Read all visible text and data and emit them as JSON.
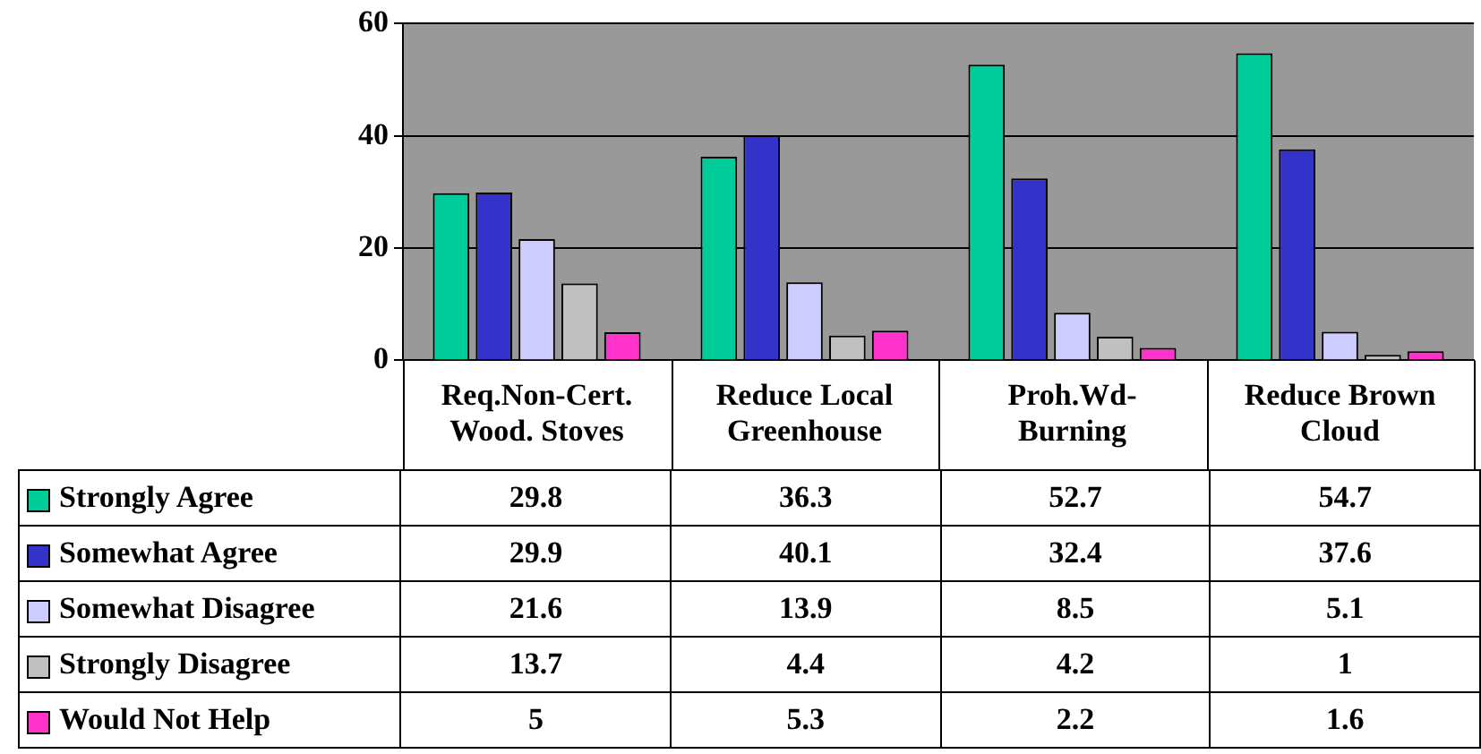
{
  "chart_data": {
    "type": "bar",
    "categories": [
      "Req.Non-Cert.\nWood. Stoves",
      "Reduce Local\nGreenhouse",
      "Proh.Wd-\nBurning",
      "Reduce Brown\nCloud"
    ],
    "series": [
      {
        "name": "Strongly Agree",
        "color": "#00cc99",
        "values": [
          29.8,
          36.3,
          52.7,
          54.7
        ]
      },
      {
        "name": "Somewhat Agree",
        "color": "#3333cc",
        "values": [
          29.9,
          40.1,
          32.4,
          37.6
        ]
      },
      {
        "name": "Somewhat Disagree",
        "color": "#ccccff",
        "values": [
          21.6,
          13.9,
          8.5,
          5.1
        ]
      },
      {
        "name": "Strongly Disagree",
        "color": "#c0c0c0",
        "values": [
          13.7,
          4.4,
          4.2,
          1
        ]
      },
      {
        "name": "Would Not Help",
        "color": "#ff33cc",
        "values": [
          5,
          5.3,
          2.2,
          1.6
        ]
      }
    ],
    "ylim": [
      0,
      60
    ],
    "yticks": [
      0,
      20,
      40,
      60
    ],
    "grid": "y",
    "legend": "bottom left",
    "data_labels": true
  }
}
